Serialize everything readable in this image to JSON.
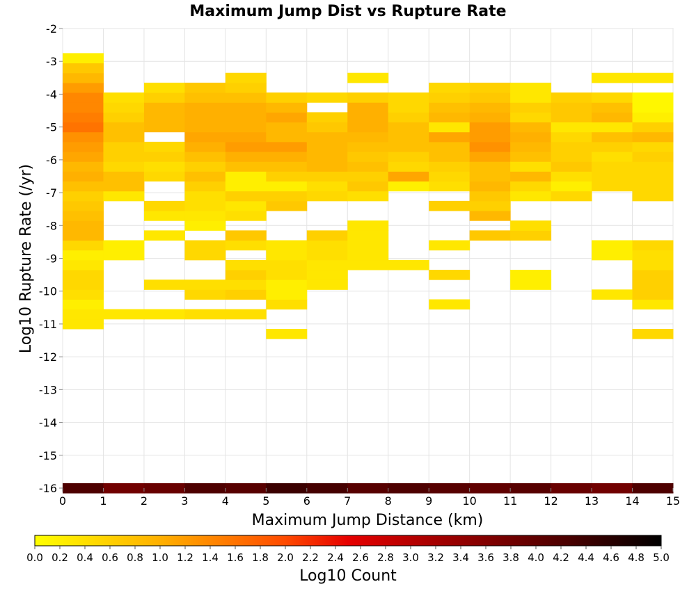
{
  "chart_data": {
    "type": "heatmap",
    "title": "Maximum Jump Dist vs Rupture Rate",
    "xlabel": "Maximum Jump Distance (km)",
    "ylabel": "Log10 Rupture Rate (/yr)",
    "xlim": [
      0,
      15
    ],
    "ylim": [
      -16,
      -2
    ],
    "x_ticks": [
      "0",
      "1",
      "2",
      "3",
      "4",
      "5",
      "6",
      "7",
      "8",
      "9",
      "10",
      "11",
      "12",
      "13",
      "14",
      "15"
    ],
    "y_ticks": [
      "-2",
      "-3",
      "-4",
      "-5",
      "-6",
      "-7",
      "-8",
      "-9",
      "-10",
      "-11",
      "-12",
      "-13",
      "-14",
      "-15",
      "-16"
    ],
    "grid": true,
    "x_bin_width": 1,
    "y_bin_height": 0.3,
    "colorbar": {
      "label": "Log10 Count",
      "range": [
        0,
        5
      ],
      "colormap": "yellow-orange-red-black",
      "ticks": [
        "0.0",
        "0.2",
        "0.4",
        "0.6",
        "0.8",
        "1.0",
        "1.2",
        "1.4",
        "1.6",
        "1.8",
        "2.0",
        "2.2",
        "2.4",
        "2.6",
        "2.8",
        "3.0",
        "3.2",
        "3.4",
        "3.6",
        "3.8",
        "4.0",
        "4.2",
        "4.4",
        "4.6",
        "4.8",
        "5.0"
      ]
    },
    "columns": [
      {
        "x": 0.5,
        "cells": [
          [
            -16,
            4.2
          ],
          [
            -11,
            0.3
          ],
          [
            -10.7,
            0.3
          ],
          [
            -10.4,
            0.2
          ],
          [
            -10.1,
            0.4
          ],
          [
            -9.8,
            0.5
          ],
          [
            -9.5,
            0.5
          ],
          [
            -9.2,
            0.3
          ],
          [
            -8.9,
            0.2
          ],
          [
            -8.6,
            0.5
          ],
          [
            -8.3,
            0.9
          ],
          [
            -8,
            0.9
          ],
          [
            -7.7,
            0.8
          ],
          [
            -7.4,
            0.7
          ],
          [
            -7.1,
            0.6
          ],
          [
            -6.8,
            0.8
          ],
          [
            -6.5,
            1.0
          ],
          [
            -6.2,
            0.9
          ],
          [
            -5.9,
            1.1
          ],
          [
            -5.6,
            1.2
          ],
          [
            -5.3,
            1.3
          ],
          [
            -5,
            1.6
          ],
          [
            -4.7,
            1.5
          ],
          [
            -4.4,
            1.4
          ],
          [
            -4.1,
            1.4
          ],
          [
            -3.8,
            1.2
          ],
          [
            -3.5,
            0.9
          ],
          [
            -3.2,
            0.7
          ],
          [
            -2.9,
            0.2
          ]
        ]
      },
      {
        "x": 1.5,
        "cells": [
          [
            -16,
            3.8
          ],
          [
            -10.7,
            0.3
          ],
          [
            -8.9,
            0.2
          ],
          [
            -8.6,
            0.2
          ],
          [
            -7.1,
            0.3
          ],
          [
            -6.8,
            0.8
          ],
          [
            -6.5,
            0.8
          ],
          [
            -6.2,
            0.5
          ],
          [
            -5.9,
            0.6
          ],
          [
            -5.6,
            0.6
          ],
          [
            -5.3,
            0.8
          ],
          [
            -5,
            0.8
          ],
          [
            -4.7,
            0.6
          ],
          [
            -4.4,
            0.5
          ],
          [
            -4.1,
            0.4
          ]
        ]
      },
      {
        "x": 2.5,
        "cells": [
          [
            -16,
            3.9
          ],
          [
            -10.7,
            0.3
          ],
          [
            -9.8,
            0.4
          ],
          [
            -8.3,
            0.3
          ],
          [
            -7.7,
            0.3
          ],
          [
            -7.4,
            0.5
          ],
          [
            -6.5,
            0.5
          ],
          [
            -6.2,
            0.4
          ],
          [
            -5.9,
            0.6
          ],
          [
            -5.6,
            0.5
          ],
          [
            -5,
            0.9
          ],
          [
            -4.7,
            0.9
          ],
          [
            -4.4,
            0.9
          ],
          [
            -4.1,
            0.6
          ],
          [
            -3.8,
            0.4
          ]
        ]
      },
      {
        "x": 3.5,
        "cells": [
          [
            -16,
            4.2
          ],
          [
            -10.7,
            0.4
          ],
          [
            -10.1,
            0.5
          ],
          [
            -9.8,
            0.4
          ],
          [
            -8.9,
            0.5
          ],
          [
            -8.6,
            0.5
          ],
          [
            -8,
            0.2
          ],
          [
            -7.7,
            0.3
          ],
          [
            -7.4,
            0.4
          ],
          [
            -7.1,
            0.4
          ],
          [
            -6.8,
            0.6
          ],
          [
            -6.5,
            0.8
          ],
          [
            -6.2,
            0.6
          ],
          [
            -5.9,
            0.8
          ],
          [
            -5.6,
            1.0
          ],
          [
            -5.3,
            1.1
          ],
          [
            -5,
            1.0
          ],
          [
            -4.7,
            1.0
          ],
          [
            -4.4,
            1.0
          ],
          [
            -4.1,
            0.8
          ],
          [
            -3.8,
            0.7
          ]
        ]
      },
      {
        "x": 4.5,
        "cells": [
          [
            -16,
            4.1
          ],
          [
            -10.7,
            0.4
          ],
          [
            -10.1,
            0.6
          ],
          [
            -9.8,
            0.4
          ],
          [
            -9.5,
            0.6
          ],
          [
            -9.2,
            0.4
          ],
          [
            -8.6,
            0.4
          ],
          [
            -8.3,
            0.7
          ],
          [
            -7.7,
            0.4
          ],
          [
            -7.4,
            0.3
          ],
          [
            -7.1,
            0.6
          ],
          [
            -6.8,
            0.2
          ],
          [
            -6.5,
            0.2
          ],
          [
            -6.2,
            0.8
          ],
          [
            -5.9,
            1.0
          ],
          [
            -5.6,
            1.2
          ],
          [
            -5.3,
            1.1
          ],
          [
            -5,
            1.0
          ],
          [
            -4.7,
            1.0
          ],
          [
            -4.4,
            1.0
          ],
          [
            -4.1,
            0.8
          ],
          [
            -3.8,
            0.6
          ],
          [
            -3.5,
            0.5
          ]
        ]
      },
      {
        "x": 5.5,
        "cells": [
          [
            -16,
            4.4
          ],
          [
            -11.3,
            0.3
          ],
          [
            -10.4,
            0.4
          ],
          [
            -10.1,
            0.2
          ],
          [
            -9.8,
            0.2
          ],
          [
            -9.5,
            0.4
          ],
          [
            -9.2,
            0.4
          ],
          [
            -8.9,
            0.3
          ],
          [
            -8.6,
            0.3
          ],
          [
            -7.4,
            0.7
          ],
          [
            -7.1,
            0.6
          ],
          [
            -6.8,
            0.2
          ],
          [
            -6.5,
            0.6
          ],
          [
            -6.2,
            0.8
          ],
          [
            -5.9,
            1.0
          ],
          [
            -5.6,
            1.2
          ],
          [
            -5.3,
            0.9
          ],
          [
            -5,
            0.9
          ],
          [
            -4.7,
            1.1
          ],
          [
            -4.4,
            0.9
          ],
          [
            -4.1,
            0.6
          ]
        ]
      },
      {
        "x": 6.5,
        "cells": [
          [
            -16,
            4.3
          ],
          [
            -9.8,
            0.3
          ],
          [
            -9.5,
            0.3
          ],
          [
            -9.2,
            0.3
          ],
          [
            -8.9,
            0.4
          ],
          [
            -8.6,
            0.4
          ],
          [
            -8.3,
            0.6
          ],
          [
            -7.1,
            0.5
          ],
          [
            -6.8,
            0.4
          ],
          [
            -6.5,
            0.6
          ],
          [
            -6.2,
            0.9
          ],
          [
            -5.9,
            0.9
          ],
          [
            -5.6,
            0.9
          ],
          [
            -5.3,
            0.9
          ],
          [
            -5,
            0.7
          ],
          [
            -4.7,
            0.6
          ],
          [
            -4.1,
            0.5
          ]
        ]
      },
      {
        "x": 7.5,
        "cells": [
          [
            -16,
            4.1
          ],
          [
            -9.2,
            0.3
          ],
          [
            -8.9,
            0.3
          ],
          [
            -8.6,
            0.3
          ],
          [
            -8.3,
            0.3
          ],
          [
            -8,
            0.3
          ],
          [
            -7.1,
            0.4
          ],
          [
            -6.8,
            0.7
          ],
          [
            -6.5,
            0.6
          ],
          [
            -6.2,
            0.8
          ],
          [
            -5.9,
            0.7
          ],
          [
            -5.6,
            0.8
          ],
          [
            -5.3,
            0.9
          ],
          [
            -5,
            1.0
          ],
          [
            -4.7,
            1.0
          ],
          [
            -4.4,
            1.0
          ],
          [
            -4.1,
            0.6
          ],
          [
            -3.5,
            0.3
          ]
        ]
      },
      {
        "x": 8.5,
        "cells": [
          [
            -16,
            4.2
          ],
          [
            -9.2,
            0.3
          ],
          [
            -6.8,
            0.2
          ],
          [
            -6.5,
            1.1
          ],
          [
            -6.2,
            0.5
          ],
          [
            -5.9,
            0.6
          ],
          [
            -5.6,
            0.8
          ],
          [
            -5.3,
            0.8
          ],
          [
            -5,
            0.8
          ],
          [
            -4.7,
            0.6
          ],
          [
            -4.4,
            0.5
          ],
          [
            -4.1,
            0.5
          ]
        ]
      },
      {
        "x": 9.5,
        "cells": [
          [
            -16,
            4.1
          ],
          [
            -10.4,
            0.3
          ],
          [
            -9.5,
            0.5
          ],
          [
            -8.6,
            0.3
          ],
          [
            -7.4,
            0.6
          ],
          [
            -6.8,
            0.4
          ],
          [
            -6.5,
            0.5
          ],
          [
            -6.2,
            0.6
          ],
          [
            -5.9,
            0.8
          ],
          [
            -5.6,
            0.8
          ],
          [
            -5.3,
            1.1
          ],
          [
            -5,
            0.3
          ],
          [
            -4.7,
            0.9
          ],
          [
            -4.4,
            0.8
          ],
          [
            -4.1,
            0.6
          ],
          [
            -3.8,
            0.5
          ]
        ]
      },
      {
        "x": 10.5,
        "cells": [
          [
            -16,
            4.0
          ],
          [
            -8.3,
            0.7
          ],
          [
            -7.7,
            0.9
          ],
          [
            -7.4,
            0.6
          ],
          [
            -7.1,
            0.7
          ],
          [
            -6.8,
            0.9
          ],
          [
            -6.5,
            0.8
          ],
          [
            -6.2,
            0.8
          ],
          [
            -5.9,
            1.1
          ],
          [
            -5.6,
            1.3
          ],
          [
            -5.3,
            1.2
          ],
          [
            -5,
            1.2
          ],
          [
            -4.7,
            1.0
          ],
          [
            -4.4,
            0.9
          ],
          [
            -4.1,
            0.7
          ],
          [
            -3.8,
            0.6
          ]
        ]
      },
      {
        "x": 11.5,
        "cells": [
          [
            -16,
            4.1
          ],
          [
            -9.8,
            0.2
          ],
          [
            -9.5,
            0.2
          ],
          [
            -8.3,
            0.6
          ],
          [
            -8,
            0.4
          ],
          [
            -7.1,
            0.3
          ],
          [
            -6.8,
            0.5
          ],
          [
            -6.5,
            0.9
          ],
          [
            -6.2,
            0.4
          ],
          [
            -5.9,
            0.8
          ],
          [
            -5.6,
            0.9
          ],
          [
            -5.3,
            1.0
          ],
          [
            -5,
            0.9
          ],
          [
            -4.7,
            0.5
          ],
          [
            -4.4,
            0.6
          ],
          [
            -4.1,
            0.3
          ],
          [
            -3.8,
            0.3
          ]
        ]
      },
      {
        "x": 12.5,
        "cells": [
          [
            -16,
            3.9
          ],
          [
            -7.1,
            0.5
          ],
          [
            -6.8,
            0.2
          ],
          [
            -6.5,
            0.4
          ],
          [
            -6.2,
            0.7
          ],
          [
            -5.9,
            0.6
          ],
          [
            -5.6,
            0.6
          ],
          [
            -5.3,
            0.5
          ],
          [
            -5,
            0.3
          ],
          [
            -4.7,
            0.7
          ],
          [
            -4.4,
            0.7
          ],
          [
            -4.1,
            0.6
          ]
        ]
      },
      {
        "x": 13.5,
        "cells": [
          [
            -16,
            3.8
          ],
          [
            -10.1,
            0.3
          ],
          [
            -8.9,
            0.2
          ],
          [
            -8.6,
            0.2
          ],
          [
            -6.8,
            0.5
          ],
          [
            -6.5,
            0.5
          ],
          [
            -6.2,
            0.5
          ],
          [
            -5.9,
            0.4
          ],
          [
            -5.6,
            0.6
          ],
          [
            -5.3,
            0.8
          ],
          [
            -5,
            0.3
          ],
          [
            -4.7,
            0.9
          ],
          [
            -4.4,
            0.8
          ],
          [
            -4.1,
            0.5
          ],
          [
            -3.5,
            0.3
          ]
        ]
      },
      {
        "x": 14.5,
        "cells": [
          [
            -16,
            4.2
          ],
          [
            -11.3,
            0.5
          ],
          [
            -10.4,
            0.3
          ],
          [
            -10.1,
            0.6
          ],
          [
            -9.8,
            0.6
          ],
          [
            -9.5,
            0.6
          ],
          [
            -9.2,
            0.4
          ],
          [
            -8.9,
            0.4
          ],
          [
            -8.6,
            0.5
          ],
          [
            -7.1,
            0.5
          ],
          [
            -6.8,
            0.5
          ],
          [
            -6.5,
            0.5
          ],
          [
            -6.2,
            0.5
          ],
          [
            -5.9,
            0.6
          ],
          [
            -5.6,
            0.5
          ],
          [
            -5.3,
            0.9
          ],
          [
            -5,
            0.6
          ],
          [
            -4.7,
            0.2
          ],
          [
            -4.4,
            0.1
          ],
          [
            -4.1,
            0.1
          ],
          [
            -3.5,
            0.3
          ]
        ]
      }
    ]
  }
}
